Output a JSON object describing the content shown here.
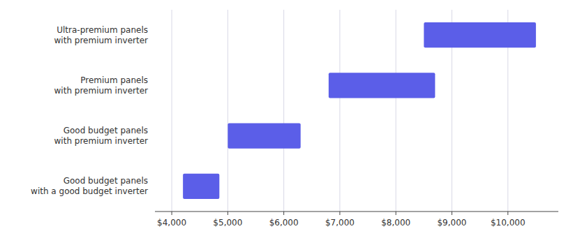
{
  "chart_data": {
    "type": "bar",
    "orientation": "horizontal",
    "categories": [
      "Ultra-premium panels\nwith premium inverter",
      "Premium panels\nwith premium inverter",
      "Good budget panels\nwith premium inverter",
      "Good budget panels\nwith a good budget inverter"
    ],
    "values": [
      [
        8500,
        10500
      ],
      [
        6800,
        8700
      ],
      [
        5000,
        6300
      ],
      [
        4200,
        4850
      ]
    ],
    "color": "#5B5EE8",
    "xlim": [
      3700,
      10900
    ],
    "xticks": [
      {
        "value": 4000,
        "label": "$4,000"
      },
      {
        "value": 5000,
        "label": "$5,000"
      },
      {
        "value": 6000,
        "label": "$6,000"
      },
      {
        "value": 7000,
        "label": "$7,000"
      },
      {
        "value": 8000,
        "label": "$8,000"
      },
      {
        "value": 9000,
        "label": "$9,000"
      },
      {
        "value": 10000,
        "label": "$10,000"
      }
    ],
    "grid": true
  }
}
